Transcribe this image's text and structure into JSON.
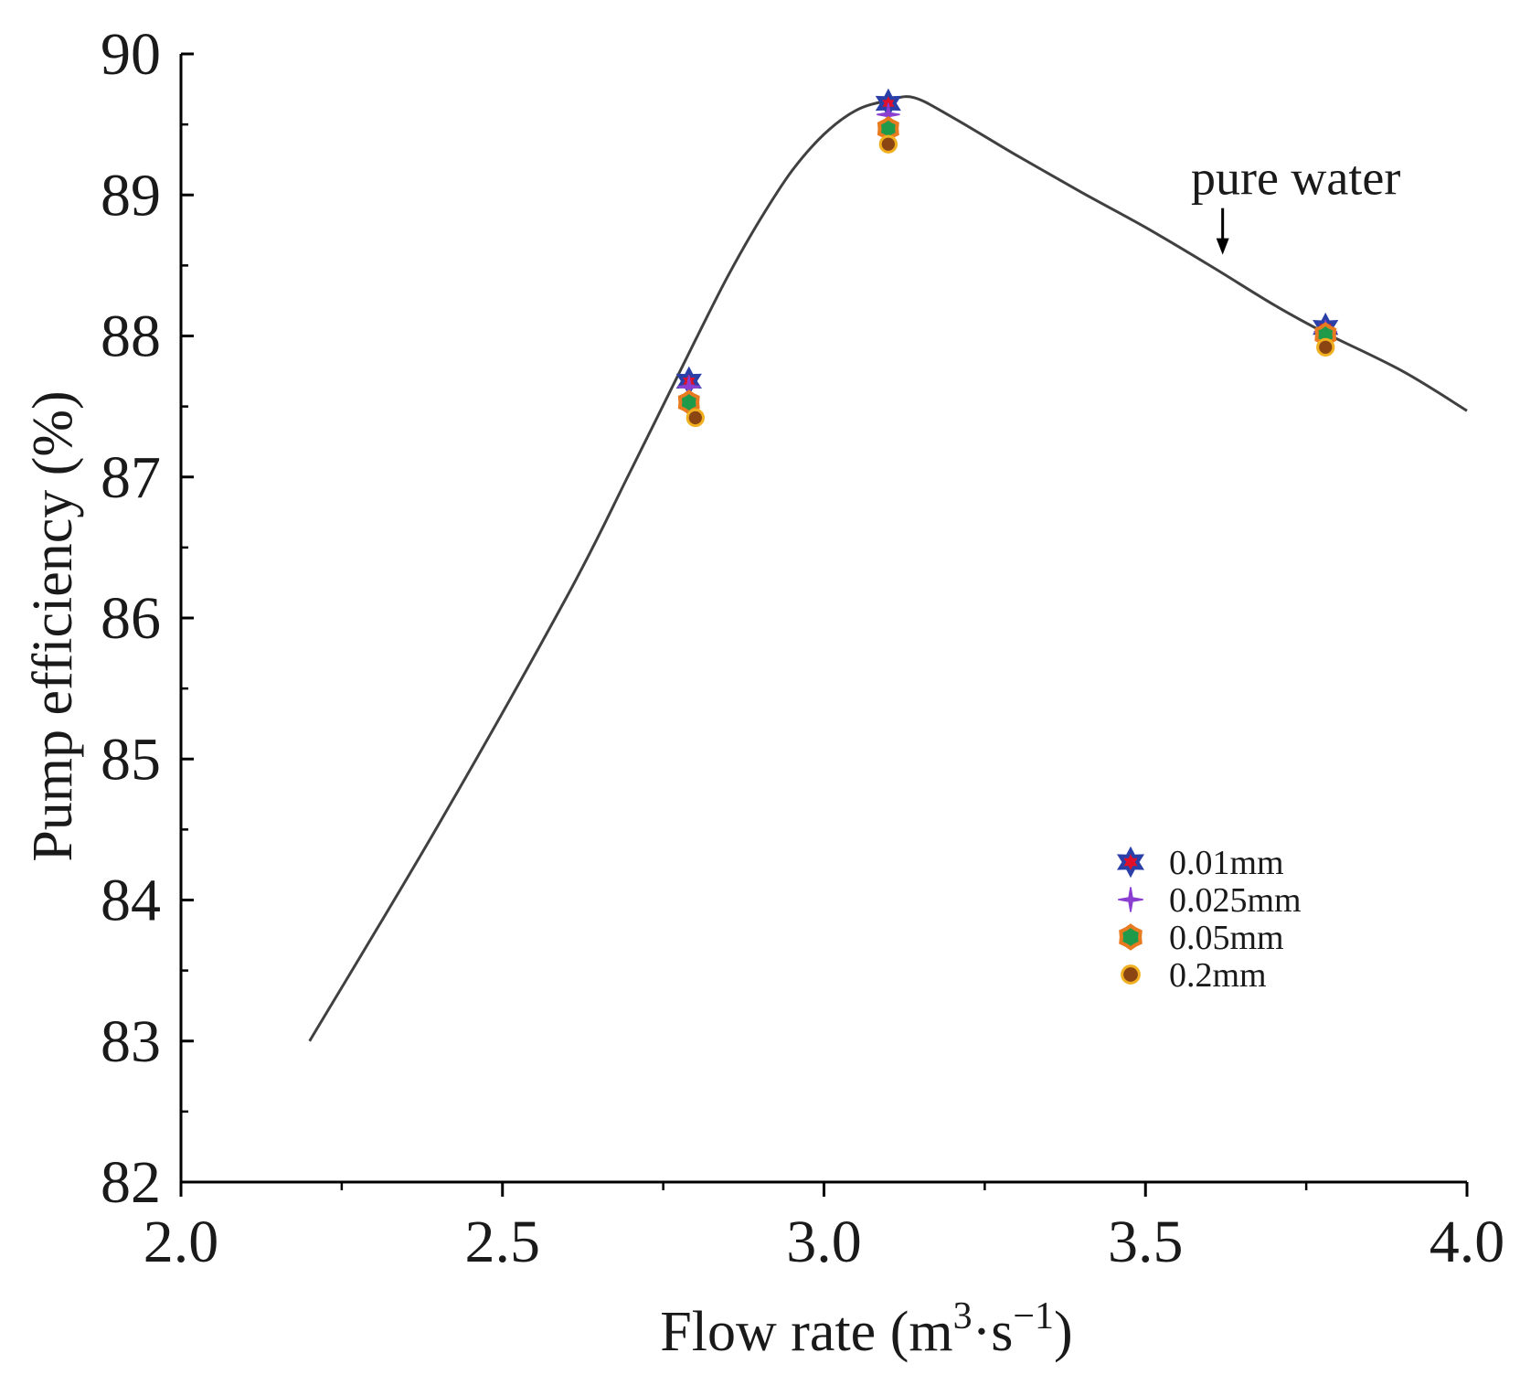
{
  "chart_data": {
    "type": "line",
    "title": "",
    "xlabel": "Flow rate (m³·s⁻¹)",
    "xlabel_parts": {
      "main": "Flow rate (m",
      "sup1": "3",
      "mid": "·s",
      "sup2": "−1",
      "end": ")"
    },
    "ylabel": "Pump efficiency (%)",
    "xlim": [
      2.0,
      4.0
    ],
    "ylim": [
      82,
      90
    ],
    "x_ticks": [
      2.0,
      2.5,
      3.0,
      3.5,
      4.0
    ],
    "x_tick_labels": [
      "2.0",
      "2.5",
      "3.0",
      "3.5",
      "4.0"
    ],
    "x_minor_ticks": [
      2.25,
      2.75,
      3.25,
      3.75
    ],
    "y_ticks": [
      82,
      83,
      84,
      85,
      86,
      87,
      88,
      89,
      90
    ],
    "y_tick_labels": [
      "82",
      "83",
      "84",
      "85",
      "86",
      "87",
      "88",
      "89",
      "90"
    ],
    "grid": false,
    "legend_position": "lower-right",
    "curve": {
      "name": "pure water",
      "color": "#404040",
      "x": [
        2.2,
        2.4,
        2.6,
        2.7,
        2.8,
        2.85,
        2.9,
        2.95,
        3.0,
        3.05,
        3.1,
        3.14,
        3.2,
        3.3,
        3.4,
        3.5,
        3.6,
        3.7,
        3.78,
        3.9,
        4.0
      ],
      "y": [
        83.0,
        84.53,
        86.15,
        87.05,
        87.97,
        88.42,
        88.82,
        89.17,
        89.43,
        89.6,
        89.67,
        89.69,
        89.55,
        89.28,
        89.02,
        88.77,
        88.5,
        88.22,
        88.02,
        87.75,
        87.47
      ]
    },
    "annotation": {
      "text": "pure water",
      "x": 3.62,
      "y": 88.55
    },
    "series": [
      {
        "name": "0.01mm",
        "marker": "star",
        "fill": "#e0102a",
        "stroke": "#2b3fa8",
        "x": [
          2.79,
          3.1,
          3.78
        ],
        "y": [
          87.68,
          89.65,
          88.06
        ]
      },
      {
        "name": "0.025mm",
        "marker": "plus-star",
        "fill": "#8a3fd1",
        "stroke": "#8a3fd1",
        "x": [
          2.79,
          3.1,
          3.78
        ],
        "y": [
          87.64,
          89.57,
          88.03
        ]
      },
      {
        "name": "0.05mm",
        "marker": "octagon",
        "fill": "#1e9a4a",
        "stroke": "#e87a20",
        "x": [
          2.79,
          3.1,
          3.78
        ],
        "y": [
          87.53,
          89.47,
          88.01
        ]
      },
      {
        "name": "0.2mm",
        "marker": "circle",
        "fill": "#8b4513",
        "stroke": "#f0b020",
        "x": [
          2.8,
          3.1,
          3.78
        ],
        "y": [
          87.42,
          89.36,
          87.92
        ]
      }
    ]
  }
}
